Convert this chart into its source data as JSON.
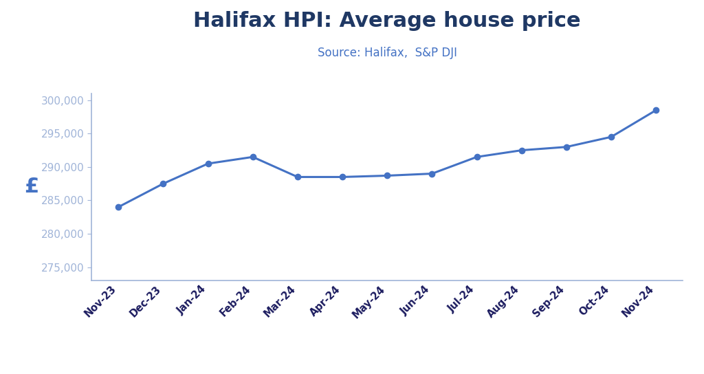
{
  "title": "Halifax HPI: Average house price",
  "subtitle": "Source: Halifax,  S&P DJI",
  "ylabel": "£",
  "categories": [
    "Nov-23",
    "Dec-23",
    "Jan-24",
    "Feb-24",
    "Mar-24",
    "Apr-24",
    "May-24",
    "Jun-24",
    "Jul-24",
    "Aug-24",
    "Sep-24",
    "Oct-24",
    "Nov-24"
  ],
  "values": [
    284000,
    287500,
    290500,
    291500,
    288500,
    288500,
    288700,
    289000,
    291500,
    292500,
    293000,
    294500,
    298500
  ],
  "ylim": [
    273000,
    301000
  ],
  "yticks": [
    275000,
    280000,
    285000,
    290000,
    295000,
    300000
  ],
  "line_color": "#4472C4",
  "marker_color": "#4472C4",
  "background_color": "#ffffff",
  "title_color": "#1F3864",
  "subtitle_color": "#4472C4",
  "ylabel_color": "#4472C4",
  "title_fontsize": 22,
  "subtitle_fontsize": 12,
  "ytick_label_color": "#1a1a5e",
  "xtick_label_color": "#1a1a5e",
  "axis_color": "#4472C4",
  "spine_color": "#a0b4d8"
}
